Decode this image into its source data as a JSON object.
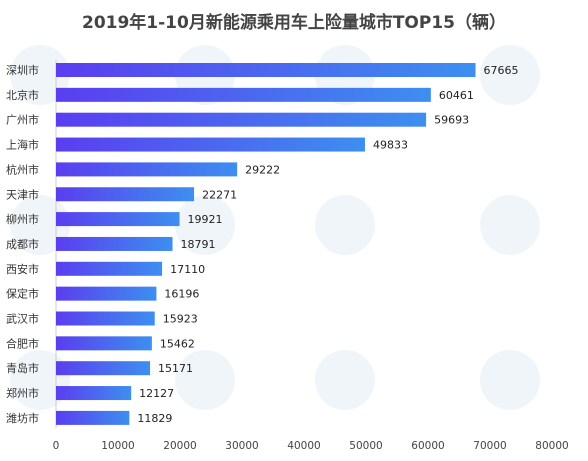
{
  "chart_data": {
    "type": "bar",
    "orientation": "horizontal",
    "title": "2019年1-10月新能源乘用车上险量城市TOP15（辆）",
    "categories": [
      "深圳市",
      "北京市",
      "广州市",
      "上海市",
      "杭州市",
      "天津市",
      "柳州市",
      "成都市",
      "西安市",
      "保定市",
      "武汉市",
      "合肥市",
      "青岛市",
      "郑州市",
      "潍坊市"
    ],
    "values": [
      67665,
      60461,
      59693,
      49833,
      29222,
      22271,
      19921,
      18791,
      17110,
      16196,
      15923,
      15462,
      15171,
      12127,
      11829
    ],
    "xlim": [
      0,
      80000
    ],
    "xticks": [
      "0",
      "10000",
      "20000",
      "30000",
      "40000",
      "50000",
      "60000",
      "70000",
      "80000"
    ],
    "xlabel": "",
    "ylabel": "",
    "grid": false,
    "legend": "none",
    "bar_color_start": "#5a3ef0",
    "bar_color_end": "#3d8ff0"
  }
}
